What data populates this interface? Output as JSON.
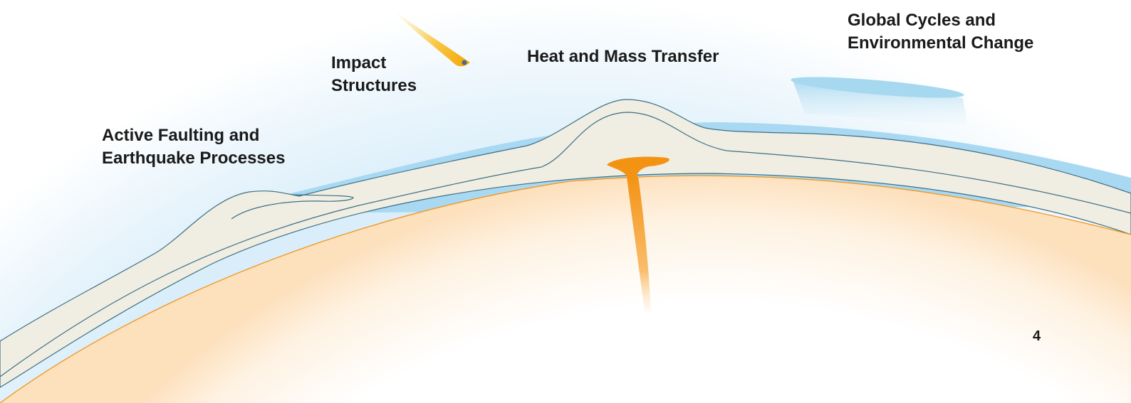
{
  "diagram": {
    "labels": {
      "faulting": [
        "Active Faulting and",
        "Earthquake Processes"
      ],
      "impact": [
        "Impact",
        "Structures"
      ],
      "heat": [
        "Heat and Mass Transfer"
      ],
      "global": [
        "Global Cycles and",
        "Environmental Change"
      ]
    },
    "page_number": "4",
    "colors": {
      "sky": "#dff0fa",
      "ocean": "#a9d9f2",
      "crust_fill": "#f0eee3",
      "crust_line": "#3d6e83",
      "mantle_line": "#f0961e",
      "mantle_glow": "#fde4c2",
      "plume": "#f39a1e",
      "meteor": "#f8b51c"
    },
    "icons": [
      "meteor-icon",
      "mantle-plume-icon",
      "cloud-icon"
    ]
  }
}
